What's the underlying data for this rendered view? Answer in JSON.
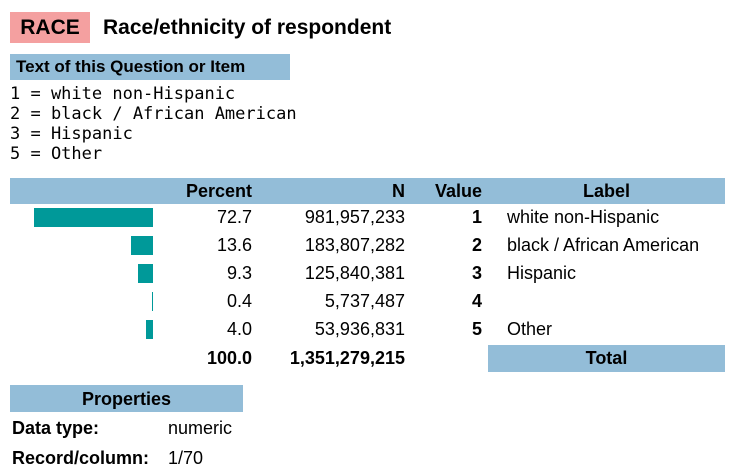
{
  "header": {
    "code": "RACE",
    "title": "Race/ethnicity of respondent"
  },
  "question": {
    "heading": "Text of this Question or Item",
    "lines": [
      "1 = white non-Hispanic",
      "2 = black / African American",
      "3 = Hispanic",
      "5 = Other"
    ]
  },
  "table": {
    "columns": [
      "Percent",
      "N",
      "Value",
      "Label"
    ],
    "rows": [
      {
        "percent": {
          "value": 72.7,
          "label": "72.7"
        },
        "n": "981,957,233",
        "value": 1,
        "label": "white non-Hispanic"
      },
      {
        "percent": {
          "value": 13.6,
          "label": "13.6"
        },
        "n": "183,807,282",
        "value": 2,
        "label": "black / African American"
      },
      {
        "percent": {
          "value": 9.3,
          "label": "9.3"
        },
        "n": "125,840,381",
        "value": 3,
        "label": "Hispanic"
      },
      {
        "percent": {
          "value": 0.4,
          "label": "0.4"
        },
        "n": "5,737,487",
        "value": 4,
        "label": null
      },
      {
        "percent": {
          "value": 4.0,
          "label": "4.0"
        },
        "n": "53,936,831",
        "value": 5,
        "label": "Other"
      }
    ],
    "total": {
      "percent": "100.0",
      "n": "1,351,279,215",
      "label": "Total"
    }
  },
  "properties": {
    "heading": "Properties",
    "items": [
      {
        "label": "Data type:",
        "value": "numeric"
      },
      {
        "label": "Record/column:",
        "value": "1/70"
      }
    ]
  }
}
